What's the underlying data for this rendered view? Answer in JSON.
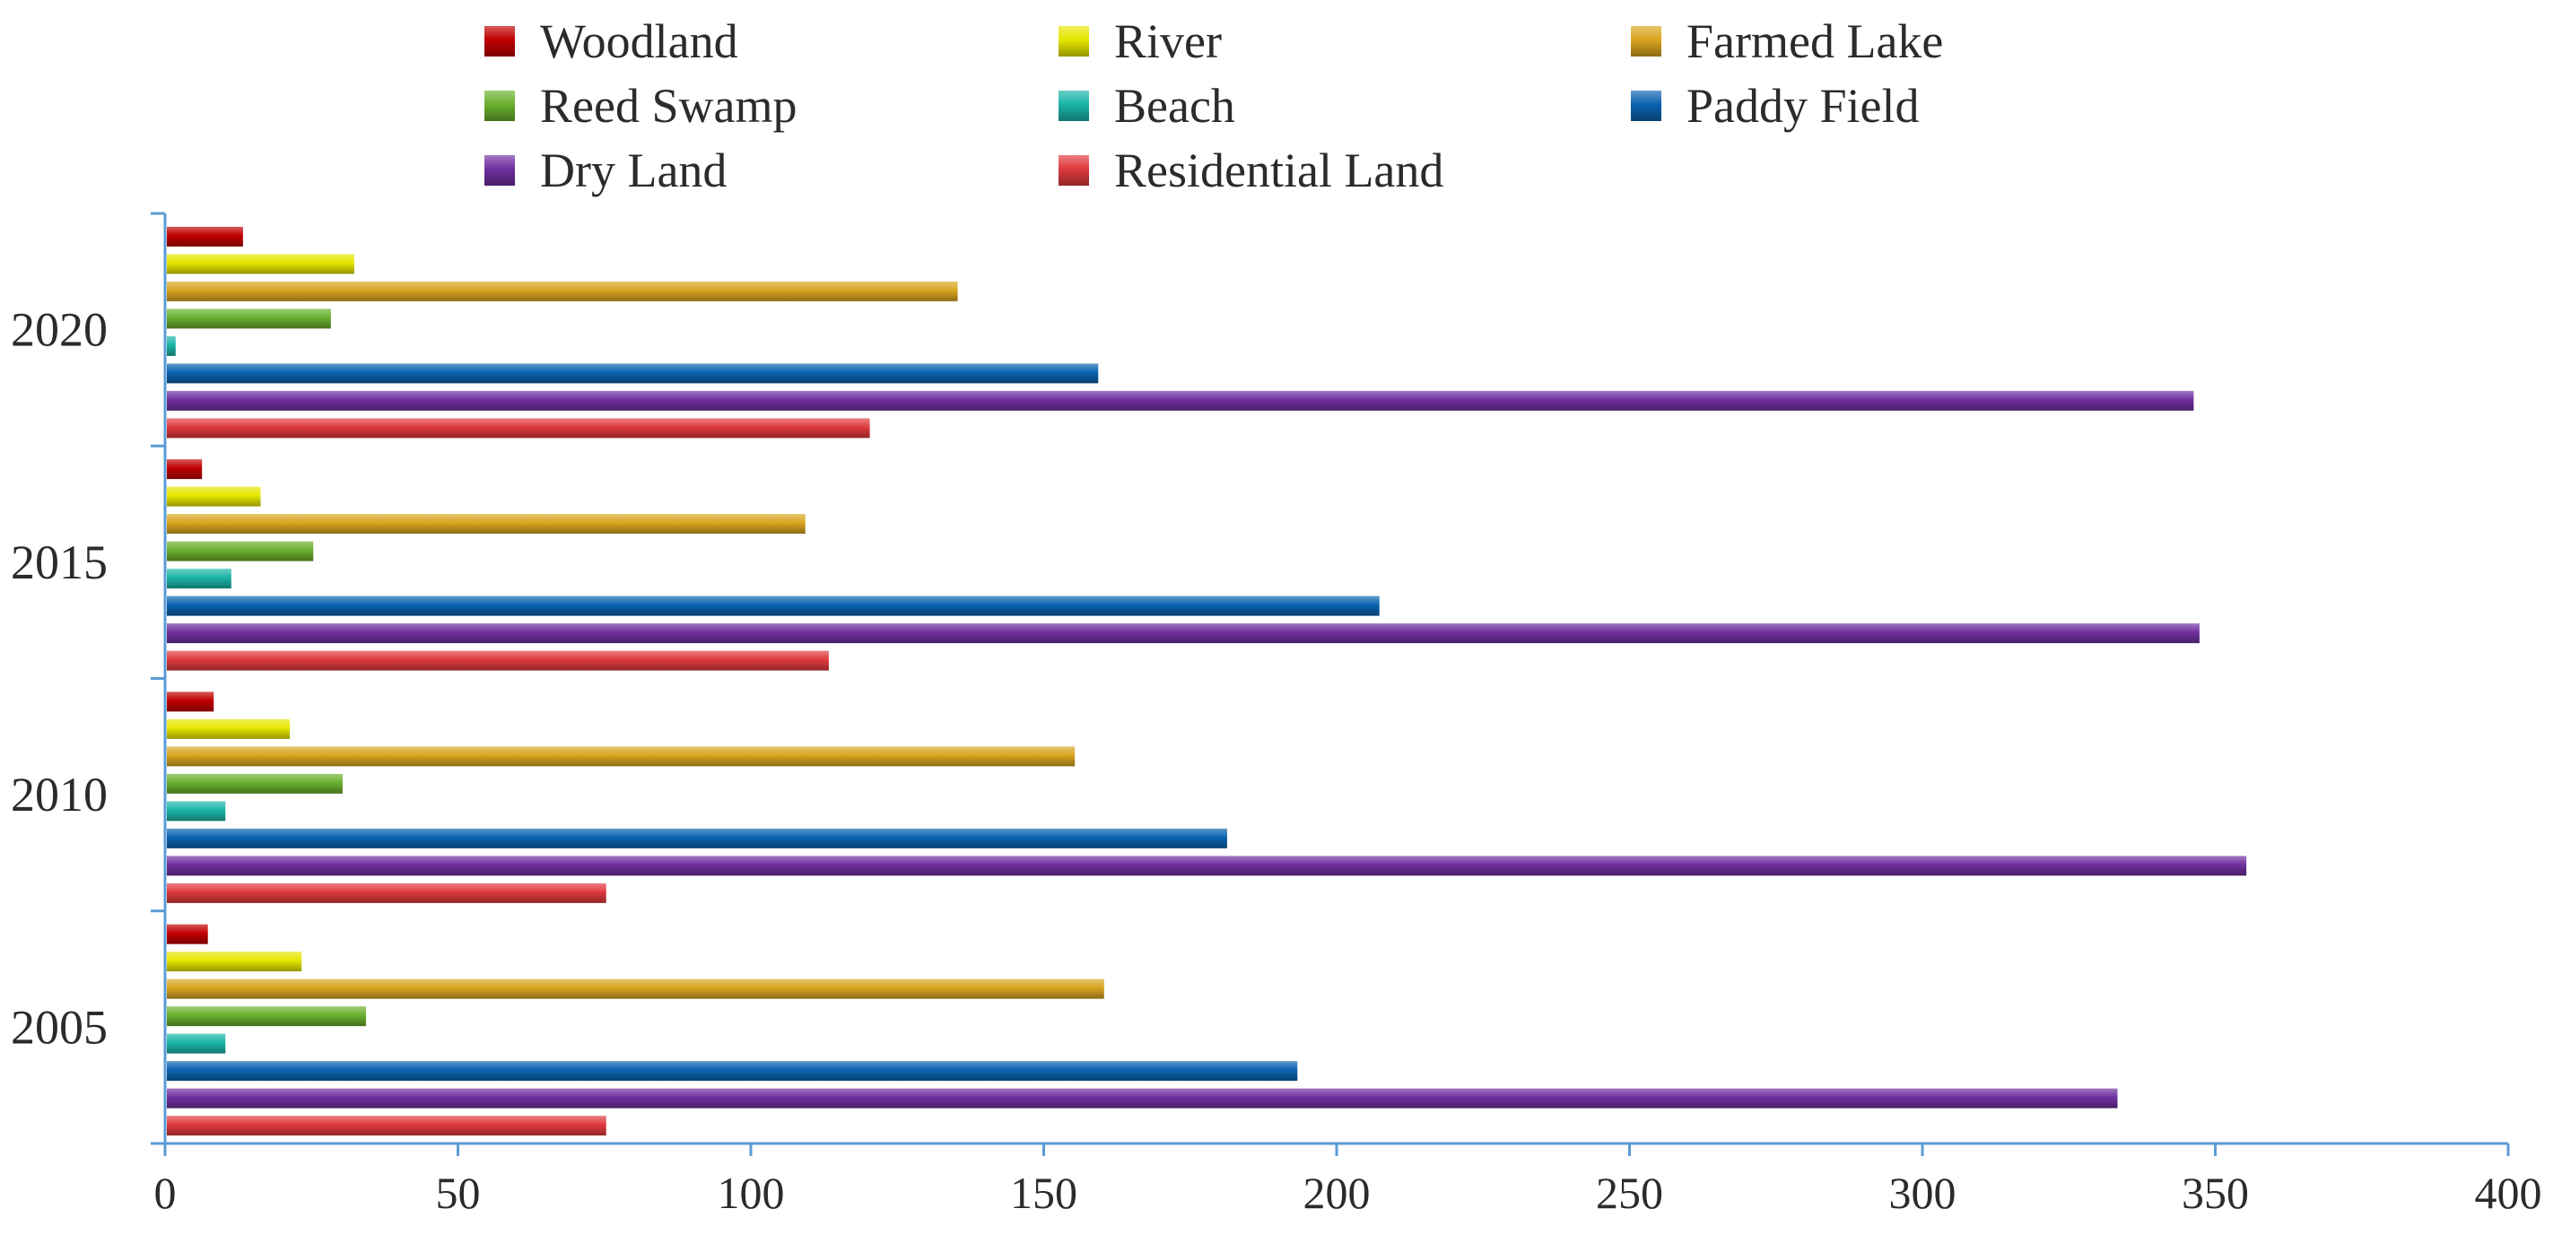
{
  "chart_data": {
    "type": "bar",
    "orientation": "horizontal",
    "title": "",
    "xlabel": "",
    "ylabel": "",
    "xlim": [
      0,
      400
    ],
    "x_ticks": [
      0,
      50,
      100,
      150,
      200,
      250,
      300,
      350,
      400
    ],
    "grid": false,
    "legend_position": "top",
    "categories": [
      "2020",
      "2015",
      "2010",
      "2005"
    ],
    "series": [
      {
        "name": "Woodland",
        "color": "#c00000",
        "values": [
          13,
          6,
          8,
          7
        ]
      },
      {
        "name": "River",
        "color": "#e6e600",
        "values": [
          32,
          16,
          21,
          23
        ]
      },
      {
        "name": "Farmed Lake",
        "color": "#d9a520",
        "values": [
          135,
          109,
          155,
          160
        ]
      },
      {
        "name": "Reed Swamp",
        "color": "#6ab02e",
        "values": [
          28,
          25,
          30,
          34
        ]
      },
      {
        "name": "Beach",
        "color": "#1bb5a8",
        "values": [
          1.5,
          11,
          10,
          10
        ]
      },
      {
        "name": "Paddy Field",
        "color": "#0a62b0",
        "values": [
          159,
          207,
          181,
          193
        ]
      },
      {
        "name": "Dry Land",
        "color": "#7030a0",
        "values": [
          346,
          347,
          355,
          333
        ]
      },
      {
        "name": "Residential Land",
        "color": "#e03a3e",
        "values": [
          120,
          113,
          75,
          75
        ]
      }
    ]
  }
}
